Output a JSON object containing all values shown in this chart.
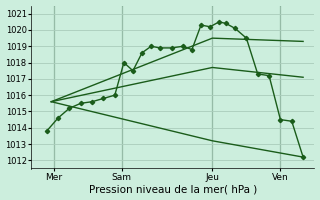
{
  "xlabel": "Pression niveau de la mer( hPa )",
  "bg_color": "#cceedd",
  "grid_color": "#aaccbb",
  "line_color": "#1a5c1a",
  "ylim": [
    1011.5,
    1021.5
  ],
  "xlim": [
    -0.5,
    12.0
  ],
  "yticks": [
    1012,
    1013,
    1014,
    1015,
    1016,
    1017,
    1018,
    1019,
    1020,
    1021
  ],
  "xtick_labels": [
    "Mer",
    "Sam",
    "Jeu",
    "Ven"
  ],
  "xtick_positions": [
    0.5,
    3.5,
    7.5,
    10.5
  ],
  "vline_positions": [
    0.5,
    3.5,
    7.5,
    10.5
  ],
  "line_main": {
    "x": [
      0.2,
      0.7,
      1.2,
      1.7,
      2.2,
      2.7,
      3.2,
      3.6,
      4.0,
      4.4,
      4.8,
      5.2,
      5.7,
      6.2,
      6.6,
      7.0,
      7.4,
      7.8,
      8.1,
      8.5,
      9.0,
      9.5,
      10.0,
      10.5,
      11.0,
      11.5
    ],
    "y": [
      1013.8,
      1014.6,
      1015.2,
      1015.5,
      1015.6,
      1015.8,
      1016.0,
      1018.0,
      1017.5,
      1018.6,
      1019.0,
      1018.9,
      1018.9,
      1019.0,
      1018.8,
      1020.3,
      1020.2,
      1020.5,
      1020.4,
      1020.1,
      1019.5,
      1017.3,
      1017.2,
      1014.5,
      1014.4,
      1012.2
    ]
  },
  "line_high": {
    "x": [
      0.4,
      7.5,
      11.5
    ],
    "y": [
      1015.6,
      1019.5,
      1019.3
    ]
  },
  "line_mid": {
    "x": [
      0.4,
      7.5,
      11.5
    ],
    "y": [
      1015.6,
      1017.7,
      1017.1
    ]
  },
  "line_low": {
    "x": [
      0.4,
      7.5,
      11.5
    ],
    "y": [
      1015.6,
      1013.2,
      1012.2
    ]
  }
}
